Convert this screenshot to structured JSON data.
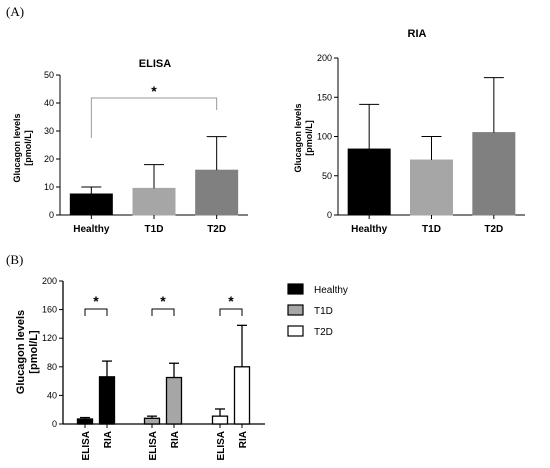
{
  "panels": {
    "a_label": "(A)",
    "b_label": "(B)"
  },
  "chart_data": [
    {
      "type": "bar",
      "title": "ELISA",
      "ylabel_line1": "Glucagon levels",
      "ylabel_line2": "[pmol/L]",
      "categories": [
        "Healthy",
        "T1D",
        "T2D"
      ],
      "values": [
        7.5,
        9.5,
        16
      ],
      "errors": [
        2.5,
        8.5,
        12
      ],
      "colors": [
        "#000000",
        "#a6a6a6",
        "#808080"
      ],
      "ylim": [
        0,
        50
      ],
      "yticks": [
        "0",
        "10",
        "20",
        "30",
        "40",
        "50"
      ],
      "significance": [
        {
          "from": "Healthy",
          "to": "T2D",
          "label": "*"
        }
      ]
    },
    {
      "type": "bar",
      "title": "RIA",
      "ylabel_line1": "Glucagon levels",
      "ylabel_line2": "[pmol/L]",
      "categories": [
        "Healthy",
        "T1D",
        "T2D"
      ],
      "values": [
        84,
        70,
        105
      ],
      "errors": [
        57,
        30,
        70
      ],
      "colors": [
        "#000000",
        "#a6a6a6",
        "#808080"
      ],
      "ylim": [
        0,
        200
      ],
      "yticks": [
        "0",
        "50",
        "100",
        "150",
        "200"
      ]
    },
    {
      "type": "bar",
      "ylabel_line1": "Glucagon levels",
      "ylabel_line2": "[pmol/L]",
      "groups": [
        "Healthy",
        "T1D",
        "T2D"
      ],
      "methods": [
        "ELISA",
        "RIA"
      ],
      "series": [
        {
          "name": "Healthy",
          "values": [
            7,
            66
          ],
          "errors": [
            2,
            22
          ],
          "color": "#000000"
        },
        {
          "name": "T1D",
          "values": [
            8,
            65
          ],
          "errors": [
            3,
            20
          ],
          "color": "#a6a6a6"
        },
        {
          "name": "T2D",
          "values": [
            11,
            80
          ],
          "errors": [
            10,
            58
          ],
          "color": "#ffffff"
        }
      ],
      "ylim": [
        0,
        200
      ],
      "yticks": [
        "0",
        "40",
        "80",
        "120",
        "160",
        "200"
      ],
      "significance_label": "*",
      "legend": [
        "Healthy",
        "T1D",
        "T2D"
      ],
      "legend_position": "right"
    }
  ]
}
